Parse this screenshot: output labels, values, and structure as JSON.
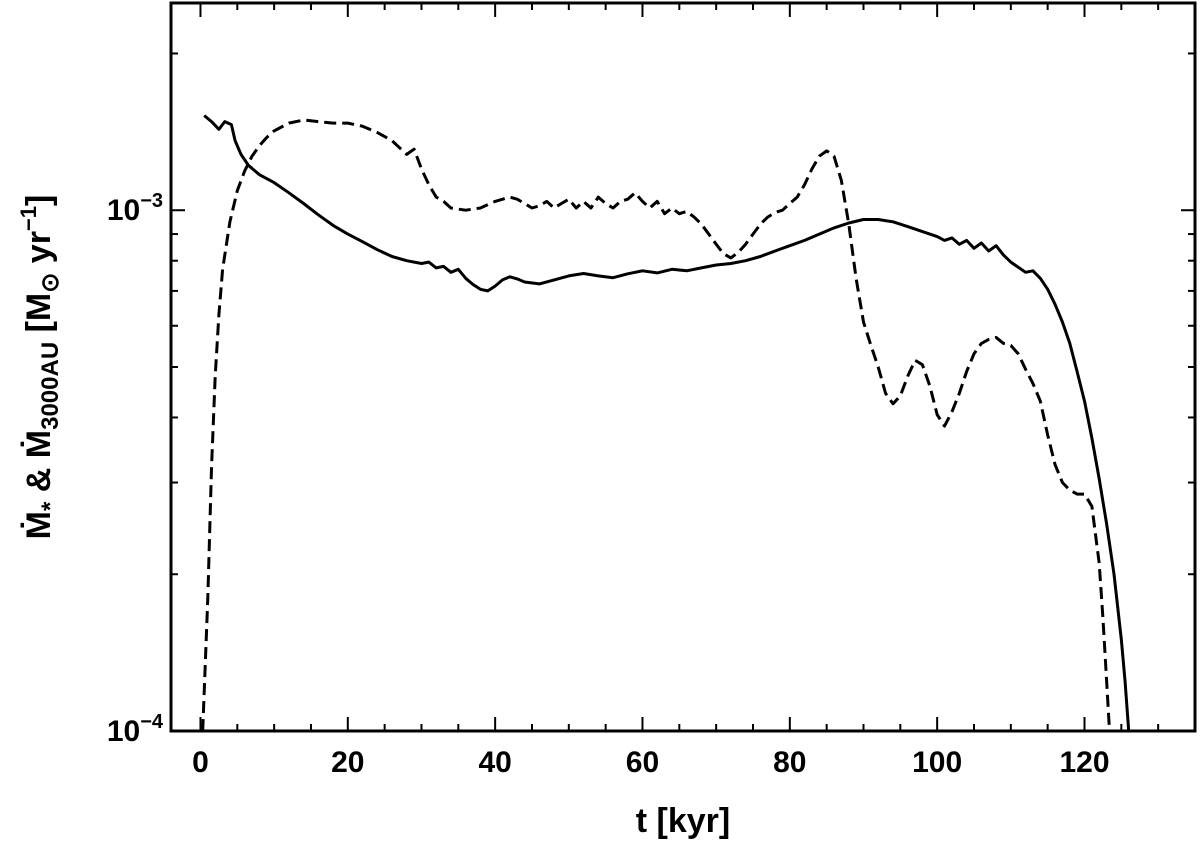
{
  "chart_data": {
    "type": "line",
    "xlabel": "t [kyr]",
    "ylabel": {
      "main": "Ṁ",
      "sub1": "*",
      "amp": " & ",
      "main2": "Ṁ",
      "sub2": "3000AU",
      "unit": " [M",
      "sun": "⊙",
      "yr": "  yr",
      "exp": "−1",
      "close": "]"
    },
    "xlim": [
      -4,
      135
    ],
    "ylim": [
      0.0001,
      0.0025
    ],
    "yscale": "log",
    "xticks": [
      0,
      20,
      40,
      60,
      80,
      100,
      120
    ],
    "xtick_labels": [
      "0",
      "20",
      "40",
      "60",
      "80",
      "100",
      "120"
    ],
    "yticks_major": [
      {
        "value": 0.0001,
        "base": "10",
        "exp": "−4"
      },
      {
        "value": 0.001,
        "base": "10",
        "exp": "−3"
      }
    ],
    "grid": false,
    "series": [
      {
        "style": "solid",
        "color": "#000000",
        "points": [
          [
            0.5,
            0.00152
          ],
          [
            1.5,
            0.00148
          ],
          [
            2.5,
            0.00143
          ],
          [
            3.3,
            0.00148
          ],
          [
            4.2,
            0.00146
          ],
          [
            4.7,
            0.00136
          ],
          [
            5.5,
            0.00128
          ],
          [
            6.5,
            0.00122
          ],
          [
            8,
            0.00117
          ],
          [
            10,
            0.00113
          ],
          [
            12,
            0.00108
          ],
          [
            14,
            0.00103
          ],
          [
            16,
            0.00098
          ],
          [
            18,
            0.000935
          ],
          [
            20,
            0.0009
          ],
          [
            22,
            0.00087
          ],
          [
            24,
            0.00084
          ],
          [
            26,
            0.000815
          ],
          [
            28,
            0.0008
          ],
          [
            30,
            0.00079
          ],
          [
            31,
            0.000795
          ],
          [
            32,
            0.000775
          ],
          [
            33,
            0.00078
          ],
          [
            34,
            0.00076
          ],
          [
            35,
            0.00077
          ],
          [
            36,
            0.00074
          ],
          [
            37,
            0.00072
          ],
          [
            38,
            0.000705
          ],
          [
            39,
            0.0007
          ],
          [
            40,
            0.000715
          ],
          [
            41,
            0.000735
          ],
          [
            42,
            0.000745
          ],
          [
            43,
            0.000738
          ],
          [
            44,
            0.000728
          ],
          [
            46,
            0.000722
          ],
          [
            48,
            0.000735
          ],
          [
            50,
            0.000748
          ],
          [
            52,
            0.000756
          ],
          [
            54,
            0.000748
          ],
          [
            56,
            0.000742
          ],
          [
            58,
            0.000755
          ],
          [
            60,
            0.000765
          ],
          [
            62,
            0.000758
          ],
          [
            64,
            0.00077
          ],
          [
            66,
            0.000765
          ],
          [
            68,
            0.000775
          ],
          [
            70,
            0.000785
          ],
          [
            72,
            0.00079
          ],
          [
            74,
            0.0008
          ],
          [
            76,
            0.000815
          ],
          [
            78,
            0.000835
          ],
          [
            80,
            0.000855
          ],
          [
            82,
            0.000875
          ],
          [
            84,
            0.0009
          ],
          [
            86,
            0.000925
          ],
          [
            88,
            0.000945
          ],
          [
            90,
            0.00096
          ],
          [
            92,
            0.00096
          ],
          [
            94,
            0.00095
          ],
          [
            96,
            0.00093
          ],
          [
            98,
            0.00091
          ],
          [
            100,
            0.00089
          ],
          [
            101,
            0.000875
          ],
          [
            102,
            0.000885
          ],
          [
            103,
            0.00086
          ],
          [
            104,
            0.000875
          ],
          [
            105,
            0.000845
          ],
          [
            106,
            0.000865
          ],
          [
            107,
            0.000835
          ],
          [
            108,
            0.000855
          ],
          [
            109,
            0.00082
          ],
          [
            110,
            0.000795
          ],
          [
            112,
            0.00076
          ],
          [
            113,
            0.000765
          ],
          [
            114,
            0.00074
          ],
          [
            115,
            0.000705
          ],
          [
            116,
            0.00066
          ],
          [
            117,
            0.00061
          ],
          [
            118,
            0.000555
          ],
          [
            119,
            0.00049
          ],
          [
            120,
            0.00043
          ],
          [
            121,
            0.000365
          ],
          [
            122,
            0.000305
          ],
          [
            123,
            0.00025
          ],
          [
            124,
            0.0002
          ],
          [
            125,
            0.00015
          ],
          [
            125.5,
            0.000125
          ],
          [
            126,
            0.0001
          ]
        ]
      },
      {
        "style": "dashed",
        "color": "#000000",
        "points": [
          [
            0.3,
            0.0001
          ],
          [
            1,
            0.00018
          ],
          [
            1.5,
            0.00032
          ],
          [
            2,
            0.00048
          ],
          [
            2.5,
            0.00063
          ],
          [
            3,
            0.00077
          ],
          [
            4,
            0.00095
          ],
          [
            5,
            0.00109
          ],
          [
            6,
            0.00119
          ],
          [
            7,
            0.00127
          ],
          [
            8,
            0.00133
          ],
          [
            9,
            0.00138
          ],
          [
            10,
            0.00142
          ],
          [
            12,
            0.00147
          ],
          [
            14,
            0.00149
          ],
          [
            16,
            0.00148
          ],
          [
            18,
            0.00147
          ],
          [
            20,
            0.00147
          ],
          [
            22,
            0.00145
          ],
          [
            24,
            0.00141
          ],
          [
            26,
            0.00136
          ],
          [
            28,
            0.00128
          ],
          [
            29,
            0.00131
          ],
          [
            30,
            0.0012
          ],
          [
            31,
            0.00112
          ],
          [
            32,
            0.00106
          ],
          [
            33,
            0.00104
          ],
          [
            34,
            0.00101
          ],
          [
            36,
            0.001
          ],
          [
            38,
            0.00101
          ],
          [
            40,
            0.00104
          ],
          [
            42,
            0.00106
          ],
          [
            43,
            0.00105
          ],
          [
            44,
            0.00103
          ],
          [
            45,
            0.00101
          ],
          [
            46,
            0.00102
          ],
          [
            47,
            0.00104
          ],
          [
            48,
            0.00101
          ],
          [
            49,
            0.00103
          ],
          [
            50,
            0.00105
          ],
          [
            51,
            0.00101
          ],
          [
            52,
            0.00104
          ],
          [
            53,
            0.00101
          ],
          [
            54,
            0.00106
          ],
          [
            55,
            0.00103
          ],
          [
            56,
            0.00101
          ],
          [
            57,
            0.00104
          ],
          [
            58,
            0.00105
          ],
          [
            59,
            0.00108
          ],
          [
            60,
            0.00104
          ],
          [
            61,
            0.00101
          ],
          [
            62,
            0.00104
          ],
          [
            63,
            0.000985
          ],
          [
            64,
            0.00101
          ],
          [
            65,
            0.000985
          ],
          [
            66,
            0.000995
          ],
          [
            67,
            0.00097
          ],
          [
            68,
            0.00094
          ],
          [
            69,
            0.0009
          ],
          [
            70,
            0.00086
          ],
          [
            71,
            0.000825
          ],
          [
            72,
            0.00081
          ],
          [
            73,
            0.00083
          ],
          [
            74,
            0.00086
          ],
          [
            75,
            0.0009
          ],
          [
            76,
            0.00094
          ],
          [
            77,
            0.00097
          ],
          [
            78,
            0.00099
          ],
          [
            79,
            0.001
          ],
          [
            80,
            0.00103
          ],
          [
            81,
            0.00106
          ],
          [
            82,
            0.00112
          ],
          [
            83,
            0.0012
          ],
          [
            84,
            0.00127
          ],
          [
            85,
            0.0013
          ],
          [
            86,
            0.00127
          ],
          [
            87,
            0.00114
          ],
          [
            88,
            0.00094
          ],
          [
            89,
            0.00074
          ],
          [
            90,
            0.00061
          ],
          [
            91,
            0.00055
          ],
          [
            92,
            0.0005
          ],
          [
            93,
            0.000445
          ],
          [
            94,
            0.000425
          ],
          [
            95,
            0.00044
          ],
          [
            96,
            0.00048
          ],
          [
            97,
            0.000515
          ],
          [
            98,
            0.000505
          ],
          [
            99,
            0.00046
          ],
          [
            100,
            0.000405
          ],
          [
            101,
            0.000385
          ],
          [
            102,
            0.00041
          ],
          [
            103,
            0.000445
          ],
          [
            104,
            0.00049
          ],
          [
            105,
            0.00053
          ],
          [
            106,
            0.000555
          ],
          [
            107,
            0.000565
          ],
          [
            108,
            0.00057
          ],
          [
            109,
            0.000555
          ],
          [
            110,
            0.00055
          ],
          [
            111,
            0.00053
          ],
          [
            112,
            0.000495
          ],
          [
            113,
            0.000465
          ],
          [
            114,
            0.00043
          ],
          [
            115,
            0.00037
          ],
          [
            116,
            0.000325
          ],
          [
            117,
            0.0003
          ],
          [
            118,
            0.00029
          ],
          [
            119,
            0.000285
          ],
          [
            120,
            0.000285
          ],
          [
            121,
            0.00027
          ],
          [
            122,
            0.00021
          ],
          [
            122.5,
            0.000165
          ],
          [
            123,
            0.000125
          ],
          [
            123.4,
            0.0001
          ]
        ]
      }
    ]
  }
}
